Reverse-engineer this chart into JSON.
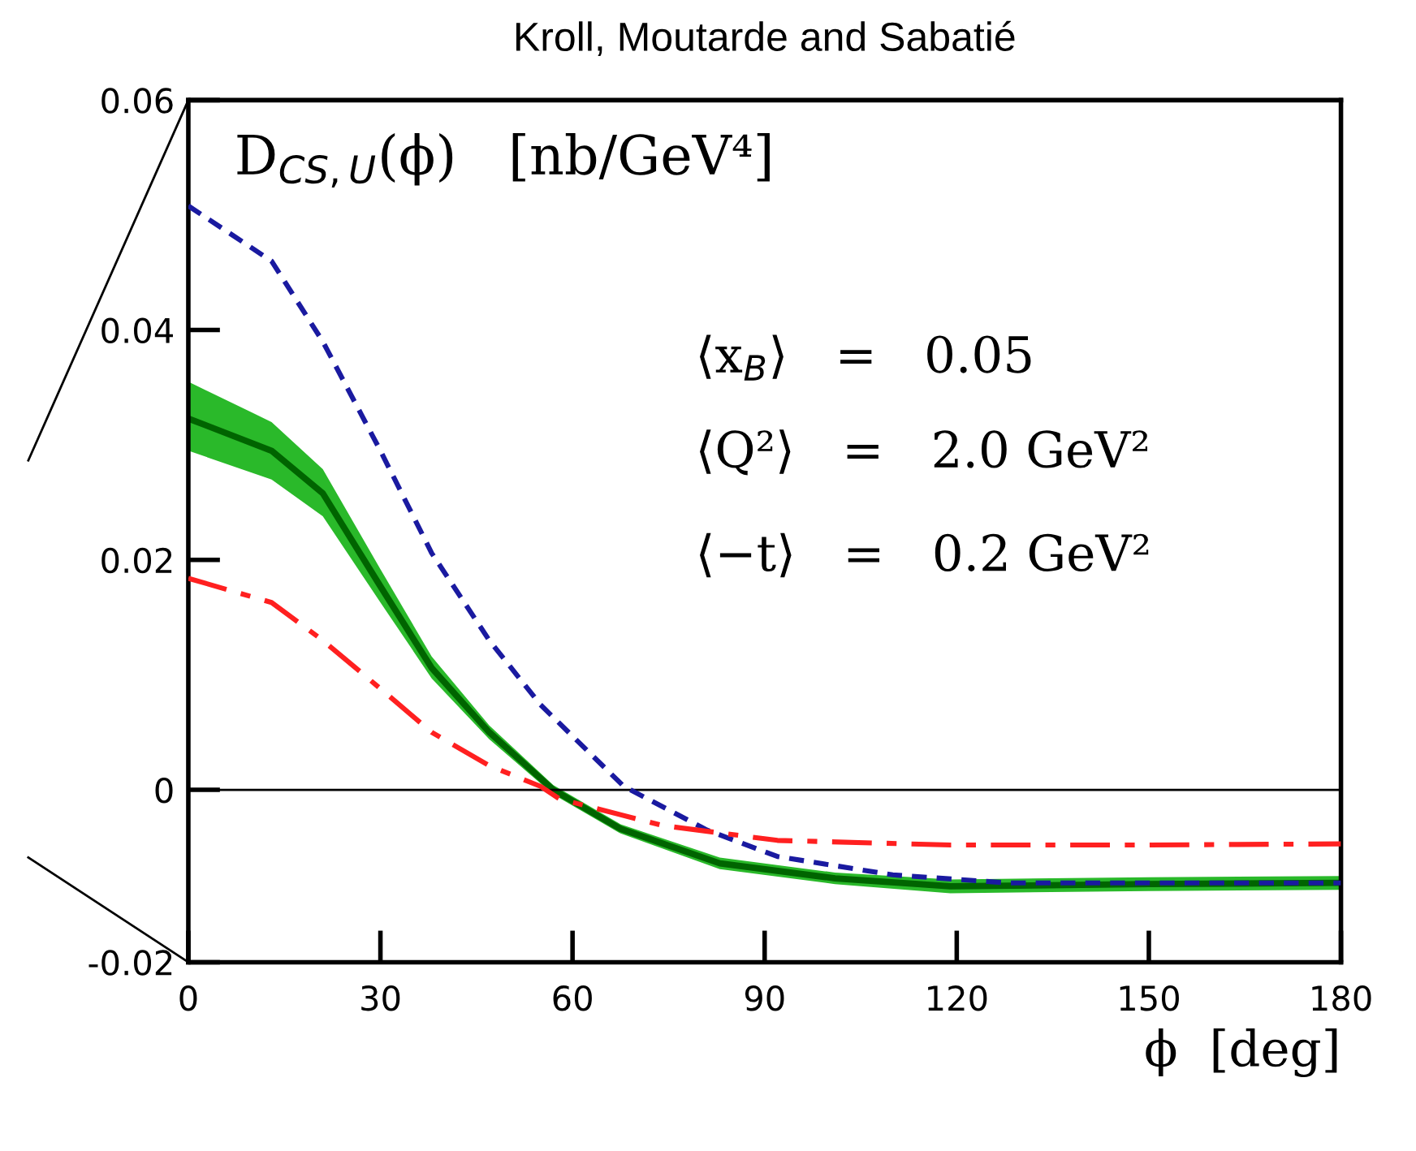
{
  "chart_data": {
    "type": "line",
    "title": "Kroll, Moutarde and Sabatié",
    "xlabel": "ϕ  [deg]",
    "annotations": [
      "D$_{CS,U}$(ϕ)   [nb/GeV⁴]",
      "⟨x$_{B}$⟩   =   0.05",
      "⟨Q²⟩   =   2.0 GeV²",
      "⟨−t⟩   =   0.2 GeV²"
    ],
    "xlim": [
      0,
      180
    ],
    "xticks": [
      0,
      30,
      60,
      90,
      120,
      150,
      180
    ],
    "ylim": [
      -0.015,
      0.06
    ],
    "yticks": [
      {
        "value": -0.015,
        "label": "-0.02"
      },
      {
        "value": 0,
        "label": "0"
      },
      0.02,
      0.04,
      0.06
    ],
    "ref_lines": [
      {
        "axis": "y",
        "value": 0,
        "color": "#000000",
        "line_style": "solid"
      }
    ],
    "legend": false,
    "grid": false,
    "marker": "none",
    "series": [
      {
        "color": "#1a1aa0",
        "line_style": "dashed",
        "x": [
          0,
          13,
          21,
          30,
          38,
          47,
          55,
          68,
          81,
          92,
          110,
          128,
          150,
          180
        ],
        "values": [
          0.0508,
          0.046,
          0.039,
          0.0295,
          0.0206,
          0.013,
          0.0074,
          0.0003,
          -0.0035,
          -0.0058,
          -0.0074,
          -0.0081,
          -0.0081,
          -0.0081
        ]
      },
      {
        "color": "#006400",
        "line_style": "solid",
        "x": [
          0,
          13,
          21,
          30,
          38,
          47,
          57,
          67.5,
          83,
          101,
          119,
          150,
          180
        ],
        "values": [
          0.0323,
          0.0295,
          0.0258,
          0.0177,
          0.0106,
          0.005,
          0,
          -0.0034,
          -0.0064,
          -0.0077,
          -0.0084,
          -0.0082,
          -0.0081
        ],
        "lower": [
          0.0295,
          0.027,
          0.0238,
          0.0163,
          0.0097,
          0.0044,
          -0.0004,
          -0.0038,
          -0.0069,
          -0.0082,
          -0.009,
          -0.0088,
          -0.0087
        ],
        "upper": [
          0.0355,
          0.032,
          0.0279,
          0.0192,
          0.0116,
          0.0056,
          0.0004,
          -0.003,
          -0.0059,
          -0.0072,
          -0.0078,
          -0.0076,
          -0.0075
        ]
      },
      {
        "color": "#ff2020",
        "line_style": "dashdot",
        "x": [
          0,
          13,
          21,
          30,
          38,
          47,
          55,
          58,
          74,
          92,
          119,
          150,
          180
        ],
        "values": [
          0.0184,
          0.0163,
          0.013,
          0.0088,
          0.005,
          0.0021,
          0.0003,
          -0.0008,
          -0.0031,
          -0.0044,
          -0.0048,
          -0.0048,
          -0.0047
        ]
      }
    ]
  }
}
